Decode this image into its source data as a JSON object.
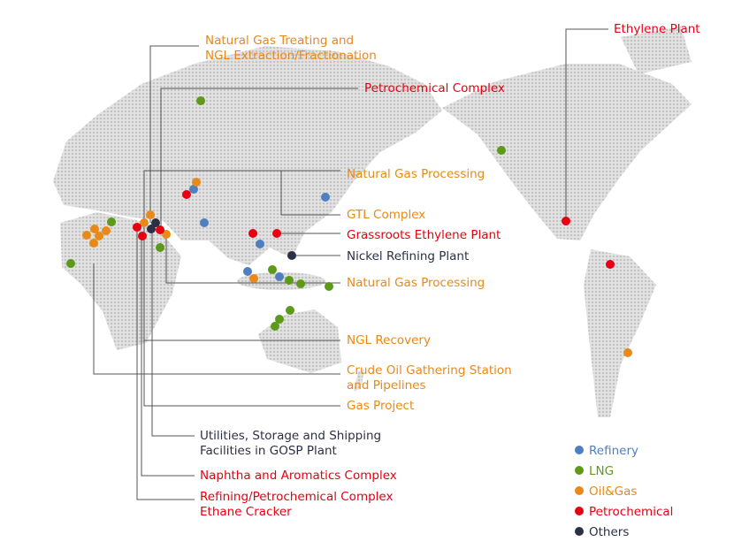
{
  "labels": [
    {
      "lines": [
        "Natural Gas Treating and",
        "NGL Extraction/Fractionation"
      ],
      "color": "#e8891a"
    },
    {
      "lines": [
        "Petrochemical Complex"
      ],
      "color": "#e60012"
    },
    {
      "lines": [
        "Natural Gas Processing"
      ],
      "color": "#e8891a"
    },
    {
      "lines": [
        "GTL Complex"
      ],
      "color": "#e8891a"
    },
    {
      "lines": [
        "Grassroots Ethylene Plant"
      ],
      "color": "#e60012"
    },
    {
      "lines": [
        "Nickel Refining Plant"
      ],
      "color": "#2b3044"
    },
    {
      "lines": [
        "Natural Gas Processing"
      ],
      "color": "#e8891a"
    },
    {
      "lines": [
        "NGL Recovery"
      ],
      "color": "#e8891a"
    },
    {
      "lines": [
        "Crude Oil Gathering Station",
        "and Pipelines"
      ],
      "color": "#e8891a"
    },
    {
      "lines": [
        "Gas Project"
      ],
      "color": "#e8891a"
    },
    {
      "lines": [
        "Utilities, Storage and Shipping",
        "Facilities in GOSP Plant"
      ],
      "color": "#2b3044"
    },
    {
      "lines": [
        "Naphtha and Aromatics Complex"
      ],
      "color": "#e60012"
    },
    {
      "lines": [
        "Refining/Petrochemical Complex",
        "Ethane Cracker"
      ],
      "color": "#e60012"
    },
    {
      "lines": [
        "Ethylene Plant"
      ],
      "color": "#e60012"
    }
  ],
  "legend": [
    {
      "name": "Refinery",
      "color": "#4f7fc0"
    },
    {
      "name": "LNG",
      "color": "#5d9a1a"
    },
    {
      "name": "Oil&Gas",
      "color": "#e8891a"
    },
    {
      "name": "Petrochemical",
      "color": "#e60012"
    },
    {
      "name": "Others",
      "color": "#2b3044"
    }
  ]
}
